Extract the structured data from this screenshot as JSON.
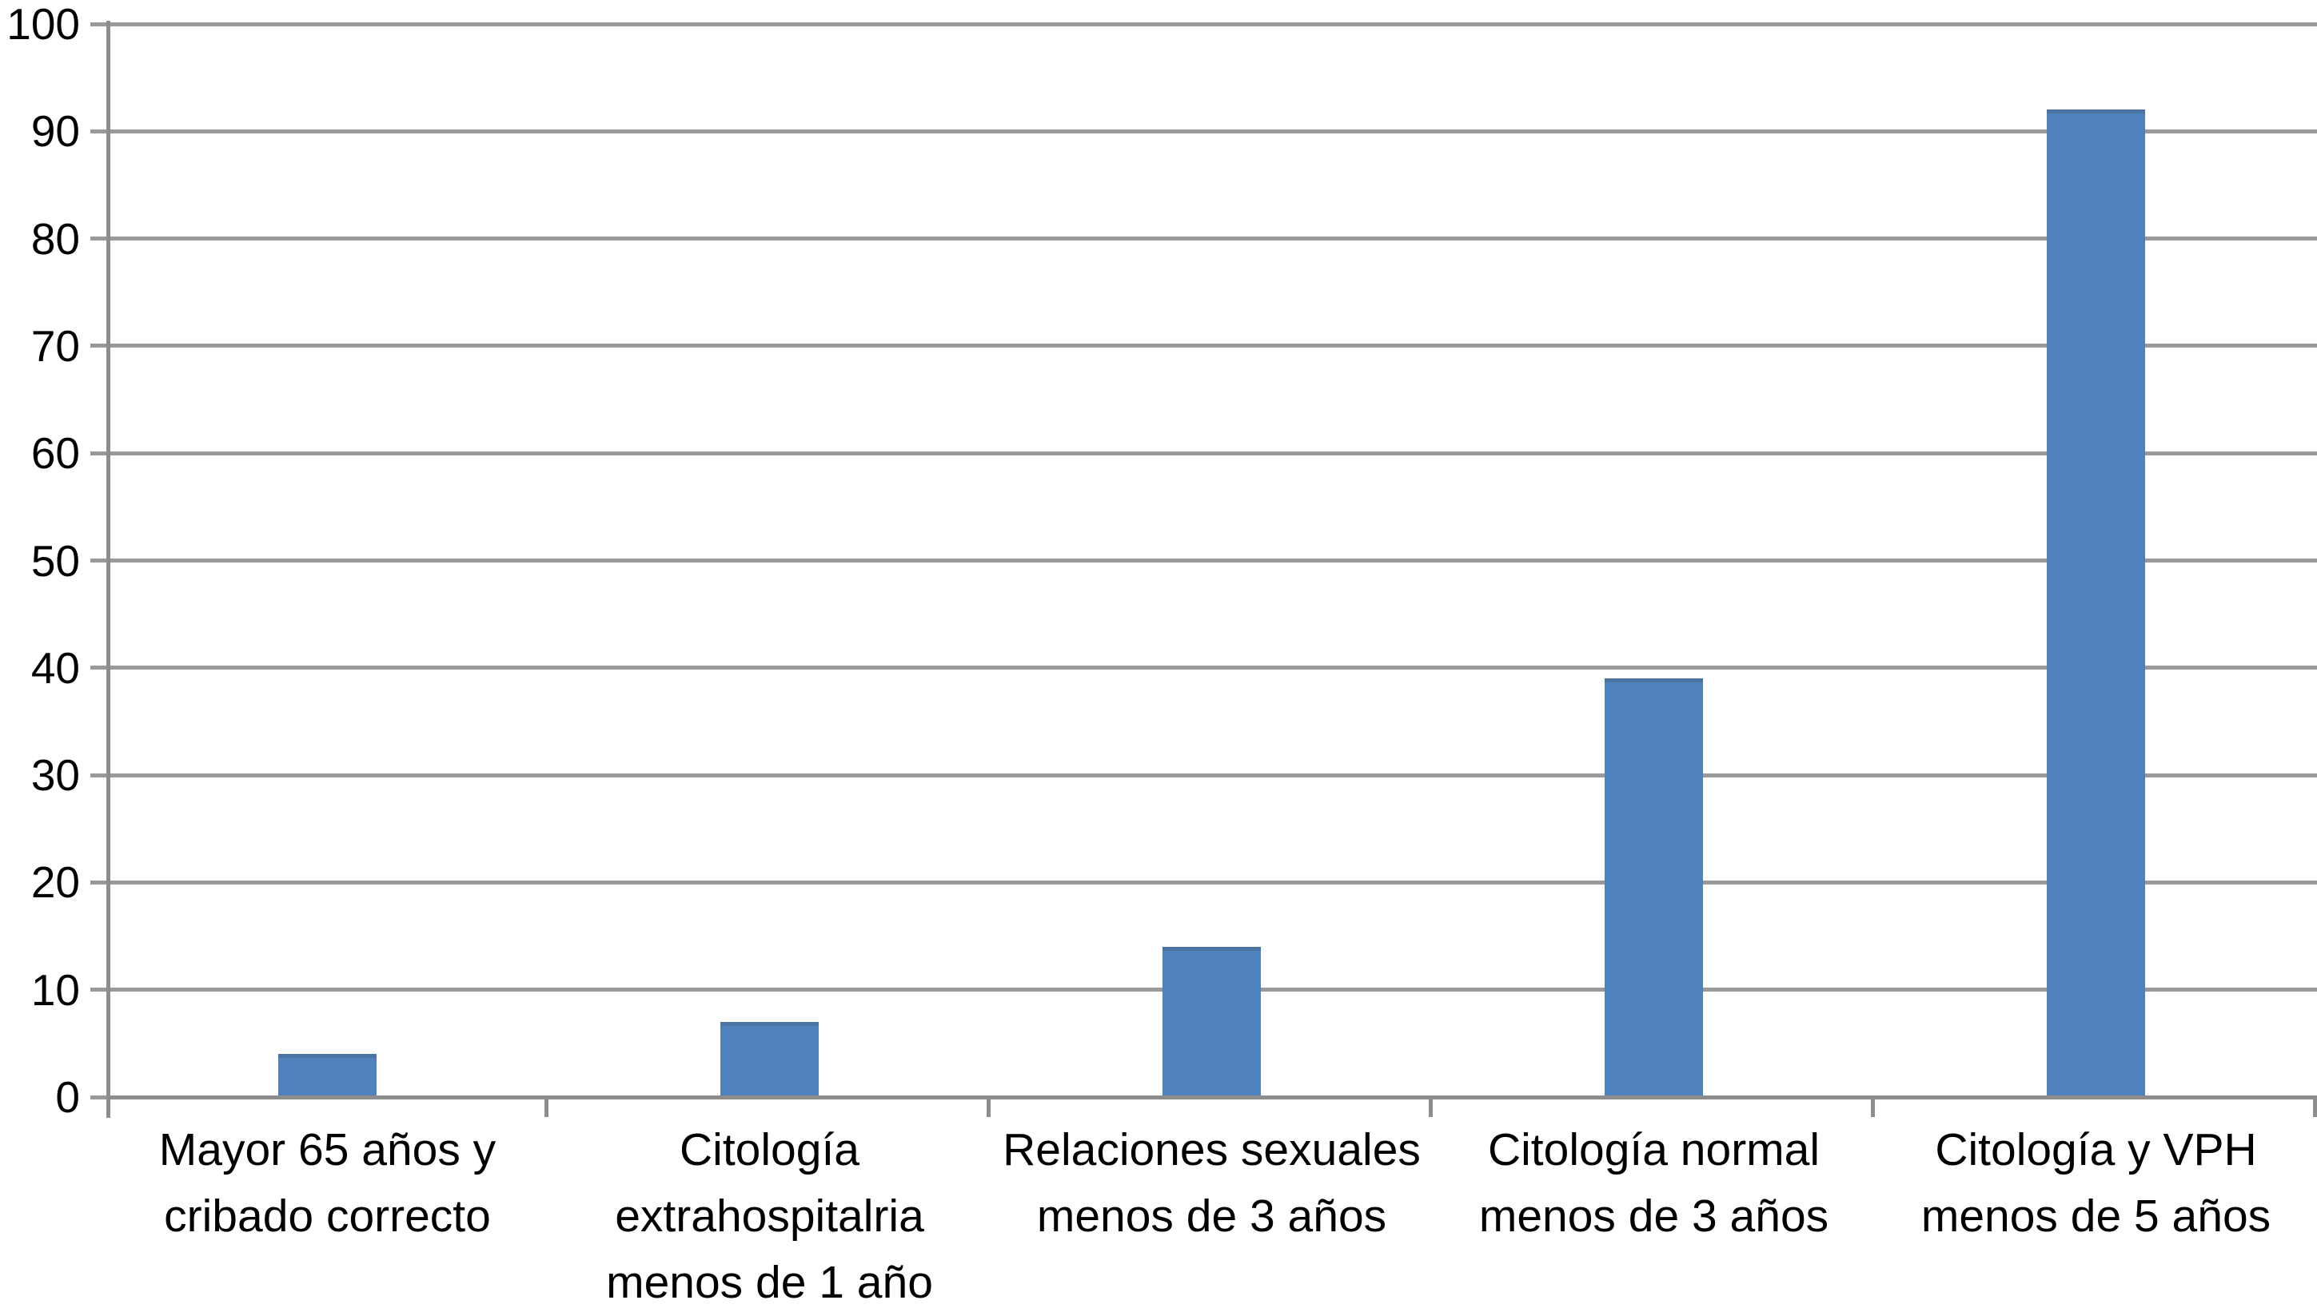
{
  "chart_data": {
    "type": "bar",
    "title": "",
    "categories": [
      "Mayor 65 años y cribado correcto",
      "Citología extrahospitalria menos de 1 año",
      "Relaciones sexuales menos de 3 años",
      "Citología normal menos de 3 años",
      "Citología y VPH menos de 5 años"
    ],
    "category_lines": [
      [
        "Mayor 65 años y",
        "cribado correcto"
      ],
      [
        "Citología",
        "extrahospitalria",
        "menos de 1 año"
      ],
      [
        "Relaciones sexuales",
        "menos de 3 años"
      ],
      [
        "Citología normal",
        "menos de 3 años"
      ],
      [
        "Citología y VPH",
        "menos de 5 años"
      ]
    ],
    "values": [
      4,
      7,
      14,
      39,
      92
    ],
    "xlabel": "",
    "ylabel": "",
    "ylim": [
      0,
      100
    ],
    "ytick_step": 10,
    "ytick_labels": [
      "0",
      "10",
      "20",
      "30",
      "40",
      "50",
      "60",
      "70",
      "80",
      "90",
      "100"
    ],
    "grid": true,
    "legend": false,
    "layout_hints": {
      "legend_position": "none",
      "bars_vertical": true,
      "gridlines_horizontal_only": true
    },
    "colors": {
      "bar": "#4f81bd",
      "bar_top_edge": "#4a74a4",
      "gridline": "#999999",
      "axis": "#8d8d8d",
      "text": "#000000",
      "background": "#ffffff"
    }
  }
}
